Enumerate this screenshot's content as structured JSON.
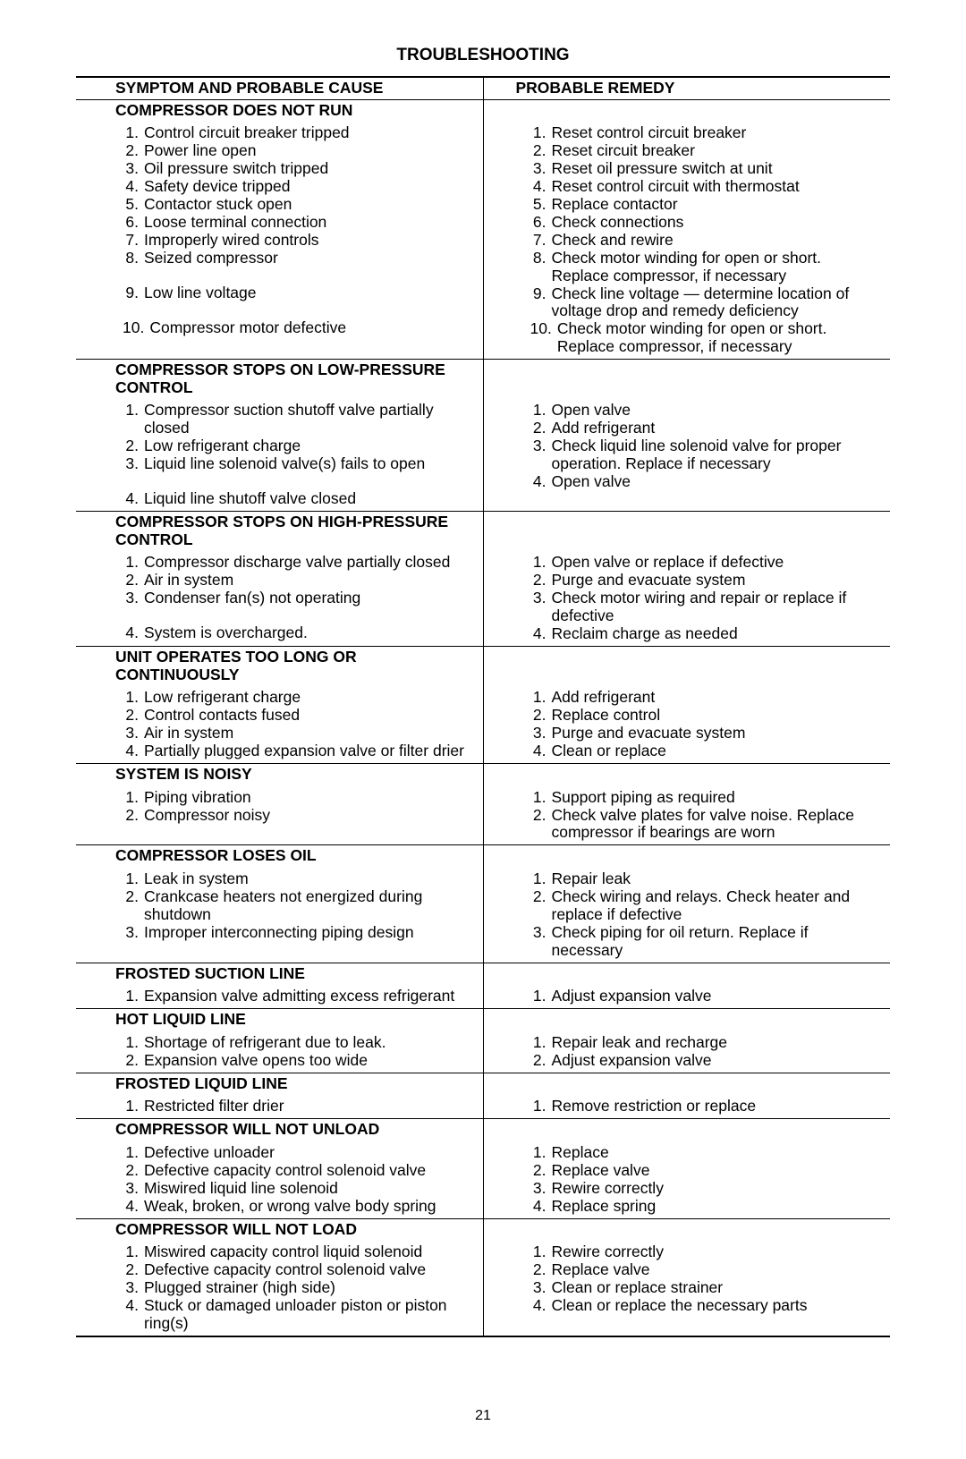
{
  "page_title": "TROUBLESHOOTING",
  "page_number": "21",
  "header": {
    "left": "SYMPTOM AND PROBABLE CAUSE",
    "right": "PROBABLE REMEDY"
  },
  "sections": [
    {
      "title": "COMPRESSOR DOES NOT RUN",
      "causes": [
        "Control circuit breaker tripped",
        "Power line open",
        "Oil pressure switch tripped",
        "Safety device tripped",
        "Contactor stuck open",
        "Loose terminal connection",
        "Improperly wired controls",
        "Seized compressor",
        "Low line voltage",
        "Compressor motor defective"
      ],
      "remedies": [
        "Reset control circuit breaker",
        "Reset circuit breaker",
        "Reset oil pressure switch at unit",
        "Reset control circuit with thermostat",
        "Replace contactor",
        "Check connections",
        "Check and rewire",
        "Check motor winding for open or short. Replace compressor, if necessary",
        "Check line voltage — determine location of voltage drop and remedy deficiency",
        "Check motor winding for open or short. Replace compressor, if necessary"
      ]
    },
    {
      "title": "COMPRESSOR STOPS ON LOW-PRESSURE CONTROL",
      "causes": [
        "Compressor suction shutoff valve partially closed",
        "Low refrigerant charge",
        "Liquid line solenoid valve(s) fails to open",
        "Liquid line shutoff valve closed"
      ],
      "remedies": [
        "Open valve",
        "Add refrigerant",
        "Check liquid line solenoid valve for proper operation. Replace if necessary",
        "Open valve"
      ]
    },
    {
      "title": "COMPRESSOR STOPS ON HIGH-PRESSURE CONTROL",
      "causes": [
        "Compressor discharge valve partially closed",
        "Air in system",
        "Condenser fan(s) not operating",
        "System is overcharged."
      ],
      "remedies": [
        "Open valve or replace if defective",
        "Purge and evacuate system",
        "Check motor wiring and repair or replace if defective",
        "Reclaim charge as needed"
      ]
    },
    {
      "title": "UNIT OPERATES TOO LONG OR CONTINUOUSLY",
      "causes": [
        "Low refrigerant charge",
        "Control contacts fused",
        "Air in system",
        "Partially plugged expansion valve or filter drier"
      ],
      "remedies": [
        "Add refrigerant",
        "Replace control",
        "Purge and evacuate system",
        "Clean or replace"
      ]
    },
    {
      "title": "SYSTEM IS NOISY",
      "causes": [
        "Piping vibration",
        "Compressor noisy"
      ],
      "remedies": [
        "Support piping as required",
        "Check valve plates for valve noise. Replace compressor if bearings are worn"
      ]
    },
    {
      "title": "COMPRESSOR LOSES OIL",
      "causes": [
        "Leak in system",
        "Crankcase heaters not energized during shutdown",
        "Improper interconnecting piping design"
      ],
      "remedies": [
        "Repair leak",
        "Check wiring and relays. Check heater and replace if defective",
        "Check piping for oil return. Replace if necessary"
      ]
    },
    {
      "title": "FROSTED SUCTION LINE",
      "causes": [
        "Expansion valve admitting excess refrigerant"
      ],
      "remedies": [
        "Adjust expansion valve"
      ]
    },
    {
      "title": "HOT LIQUID LINE",
      "causes": [
        "Shortage of refrigerant due to leak.",
        "Expansion valve opens too wide"
      ],
      "remedies": [
        "Repair leak and recharge",
        "Adjust expansion valve"
      ]
    },
    {
      "title": "FROSTED LIQUID LINE",
      "causes": [
        "Restricted filter drier"
      ],
      "remedies": [
        "Remove restriction or replace"
      ]
    },
    {
      "title": "COMPRESSOR WILL NOT UNLOAD",
      "causes": [
        "Defective unloader",
        "Defective capacity control solenoid valve",
        "Miswired liquid line solenoid",
        "Weak, broken, or wrong valve body spring"
      ],
      "remedies": [
        "Replace",
        "Replace valve",
        "Rewire correctly",
        "Replace spring"
      ]
    },
    {
      "title": "COMPRESSOR WILL NOT LOAD",
      "causes": [
        "Miswired capacity control liquid solenoid",
        "Defective capacity control solenoid valve",
        "Plugged strainer (high side)",
        "Stuck or damaged unloader piston or piston ring(s)"
      ],
      "remedies": [
        "Rewire correctly",
        "Replace valve",
        "Clean or replace strainer",
        "Clean or replace the necessary parts"
      ]
    }
  ]
}
